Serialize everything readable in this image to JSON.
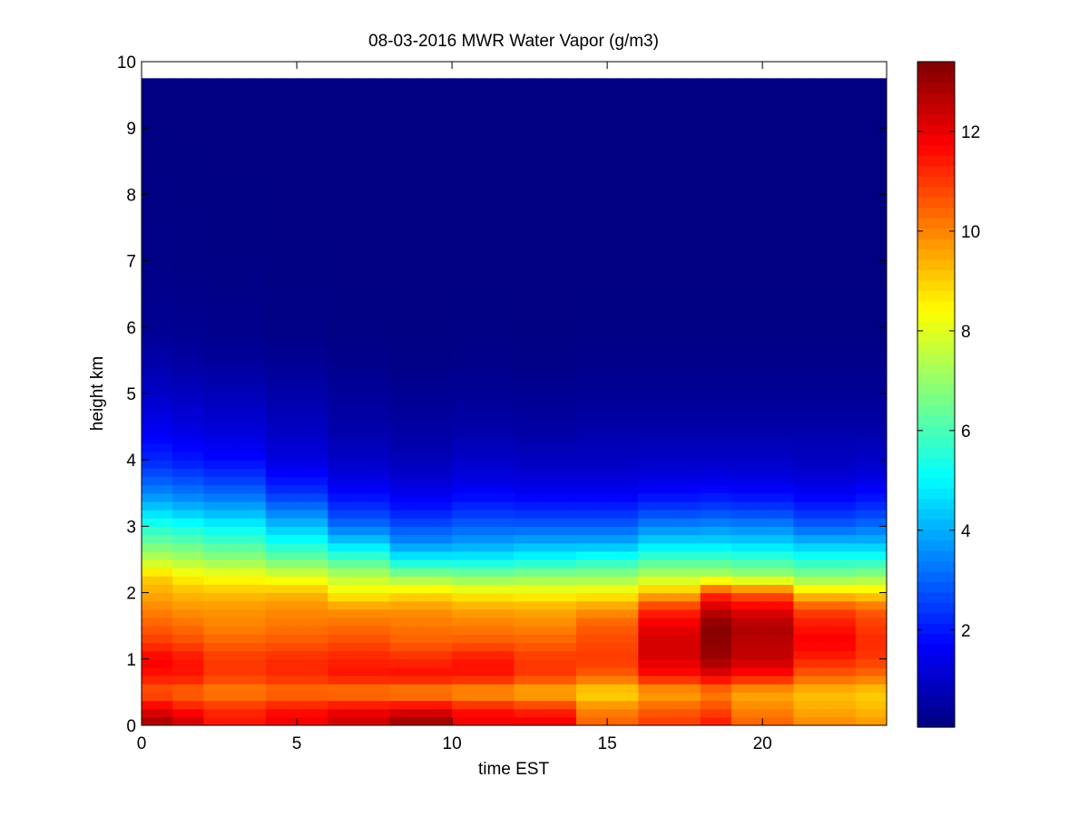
{
  "chart_data": {
    "type": "heatmap",
    "title": "08-03-2016 MWR Water Vapor (g/m3)",
    "xlabel": "time EST",
    "ylabel": "height km",
    "xlim": [
      0,
      24
    ],
    "ylim": [
      0,
      10
    ],
    "x_ticks": [
      0,
      5,
      10,
      15,
      20
    ],
    "y_ticks": [
      0,
      1,
      2,
      3,
      4,
      5,
      6,
      7,
      8,
      9,
      10
    ],
    "colorbar": {
      "colormap": "jet",
      "range": [
        0.05,
        13.4
      ],
      "ticks": [
        2,
        4,
        6,
        8,
        10,
        12
      ]
    },
    "data_extent": {
      "time_max": 23.5,
      "height_max": 9.75
    },
    "time_hours": [
      0,
      0.5,
      1,
      1.5,
      2,
      2.5,
      3,
      3.5,
      4,
      4.5,
      5,
      5.5,
      6,
      6.5,
      7,
      7.5,
      8,
      8.5,
      9,
      9.5,
      10,
      10.5,
      11,
      11.5,
      12,
      12.5,
      13,
      13.5,
      14,
      14.5,
      15,
      15.5,
      16,
      16.5,
      17,
      17.5,
      18,
      18.5,
      19,
      19.5,
      20,
      20.5,
      21,
      21.5,
      22,
      22.5,
      23,
      23.5
    ],
    "profile_heights_km": [
      0.0,
      0.25,
      0.5,
      0.75,
      1.0,
      1.25,
      1.5,
      1.75,
      2.0,
      2.25,
      2.5,
      2.75,
      3.0,
      3.25,
      3.5,
      3.75,
      4.0,
      4.5,
      5.0,
      5.5,
      6.0,
      7.0,
      9.75
    ],
    "profiles": [
      {
        "t": [
          0,
          0.5
        ],
        "wv": [
          13.0,
          12.0,
          10.5,
          11.5,
          11.8,
          11.0,
          10.5,
          10.0,
          9.5,
          9.0,
          7.5,
          6.5,
          5.5,
          4.5,
          3.5,
          2.8,
          2.2,
          1.5,
          1.0,
          0.6,
          0.3,
          0.15,
          0.05
        ]
      },
      {
        "t": [
          1,
          1.5
        ],
        "wv": [
          12.5,
          11.5,
          10.3,
          11.5,
          11.5,
          10.8,
          10.3,
          9.8,
          9.3,
          8.5,
          7.3,
          6.3,
          5.3,
          4.2,
          3.3,
          2.6,
          2.0,
          1.3,
          0.9,
          0.5,
          0.25,
          0.12,
          0.05
        ]
      },
      {
        "t": [
          2,
          3.5
        ],
        "wv": [
          11.5,
          11.2,
          10.0,
          11.0,
          11.0,
          10.5,
          10.0,
          9.8,
          9.2,
          8.3,
          7.0,
          6.0,
          5.0,
          4.0,
          3.1,
          2.4,
          1.8,
          1.2,
          0.8,
          0.4,
          0.2,
          0.1,
          0.05
        ]
      },
      {
        "t": [
          4,
          5.5
        ],
        "wv": [
          12.0,
          11.5,
          10.2,
          11.2,
          11.2,
          10.6,
          10.2,
          9.9,
          9.3,
          8.0,
          6.5,
          5.3,
          4.3,
          3.3,
          2.4,
          1.8,
          1.3,
          0.9,
          0.6,
          0.3,
          0.15,
          0.08,
          0.05
        ]
      },
      {
        "t": [
          6,
          7.5
        ],
        "wv": [
          12.5,
          11.8,
          10.0,
          11.5,
          11.3,
          10.8,
          10.3,
          9.8,
          8.5,
          7.5,
          6.0,
          4.5,
          3.2,
          2.4,
          1.8,
          1.3,
          1.0,
          0.6,
          0.4,
          0.2,
          0.1,
          0.06,
          0.05
        ]
      },
      {
        "t": [
          8,
          9.5
        ],
        "wv": [
          13.2,
          12.0,
          9.8,
          11.6,
          11.2,
          10.5,
          10.2,
          9.8,
          8.8,
          7.0,
          5.0,
          3.6,
          2.8,
          2.0,
          1.5,
          1.1,
          0.8,
          0.5,
          0.3,
          0.15,
          0.08,
          0.05,
          0.05
        ]
      },
      {
        "t": [
          10,
          11.5
        ],
        "wv": [
          12.0,
          11.5,
          9.6,
          11.5,
          11.5,
          10.6,
          10.1,
          9.6,
          8.5,
          6.8,
          5.0,
          3.8,
          3.0,
          2.3,
          1.7,
          1.3,
          1.0,
          0.6,
          0.35,
          0.18,
          0.1,
          0.06,
          0.05
        ]
      },
      {
        "t": [
          12,
          13.5
        ],
        "wv": [
          12.0,
          11.2,
          9.3,
          11.0,
          11.0,
          10.5,
          10.0,
          9.5,
          8.4,
          7.0,
          5.2,
          4.0,
          3.0,
          2.2,
          1.6,
          1.2,
          0.9,
          0.5,
          0.3,
          0.15,
          0.08,
          0.05,
          0.05
        ]
      },
      {
        "t": [
          14,
          15.5
        ],
        "wv": [
          10.5,
          10.0,
          8.8,
          10.5,
          11.0,
          10.8,
          10.5,
          9.8,
          8.5,
          7.0,
          5.5,
          4.0,
          3.0,
          2.2,
          1.6,
          1.2,
          0.9,
          0.6,
          0.35,
          0.18,
          0.1,
          0.06,
          0.05
        ]
      },
      {
        "t": [
          16,
          17.5
        ],
        "wv": [
          11.0,
          10.5,
          9.5,
          11.5,
          12.2,
          12.3,
          12.0,
          11.2,
          9.3,
          7.5,
          6.0,
          4.6,
          3.5,
          2.5,
          1.8,
          1.3,
          1.0,
          0.6,
          0.35,
          0.2,
          0.1,
          0.06,
          0.05
        ]
      },
      {
        "t": [
          18,
          18.5
        ],
        "wv": [
          11.5,
          10.8,
          10.0,
          12.0,
          13.0,
          13.2,
          13.3,
          12.5,
          11.0,
          7.5,
          6.0,
          4.6,
          3.6,
          2.6,
          1.9,
          1.4,
          1.0,
          0.6,
          0.35,
          0.2,
          0.1,
          0.06,
          0.05
        ]
      },
      {
        "t": [
          19,
          20.5
        ],
        "wv": [
          10.5,
          10.0,
          9.5,
          11.5,
          12.5,
          12.6,
          12.8,
          12.0,
          10.5,
          7.2,
          5.8,
          4.5,
          3.5,
          2.5,
          1.8,
          1.3,
          1.0,
          0.6,
          0.35,
          0.2,
          0.1,
          0.06,
          0.05
        ]
      },
      {
        "t": [
          21,
          22.5
        ],
        "wv": [
          10.0,
          9.5,
          9.2,
          10.5,
          11.3,
          11.8,
          11.5,
          10.8,
          9.0,
          6.8,
          5.5,
          4.2,
          3.0,
          2.2,
          1.6,
          1.2,
          0.9,
          0.6,
          0.35,
          0.2,
          0.1,
          0.06,
          0.05
        ]
      },
      {
        "t": [
          23,
          23.5
        ],
        "wv": [
          9.8,
          9.3,
          9.0,
          10.3,
          11.0,
          11.2,
          11.0,
          10.5,
          8.8,
          7.0,
          5.5,
          4.2,
          3.2,
          2.4,
          1.8,
          1.3,
          1.0,
          0.6,
          0.35,
          0.2,
          0.1,
          0.06,
          0.05
        ]
      }
    ]
  }
}
